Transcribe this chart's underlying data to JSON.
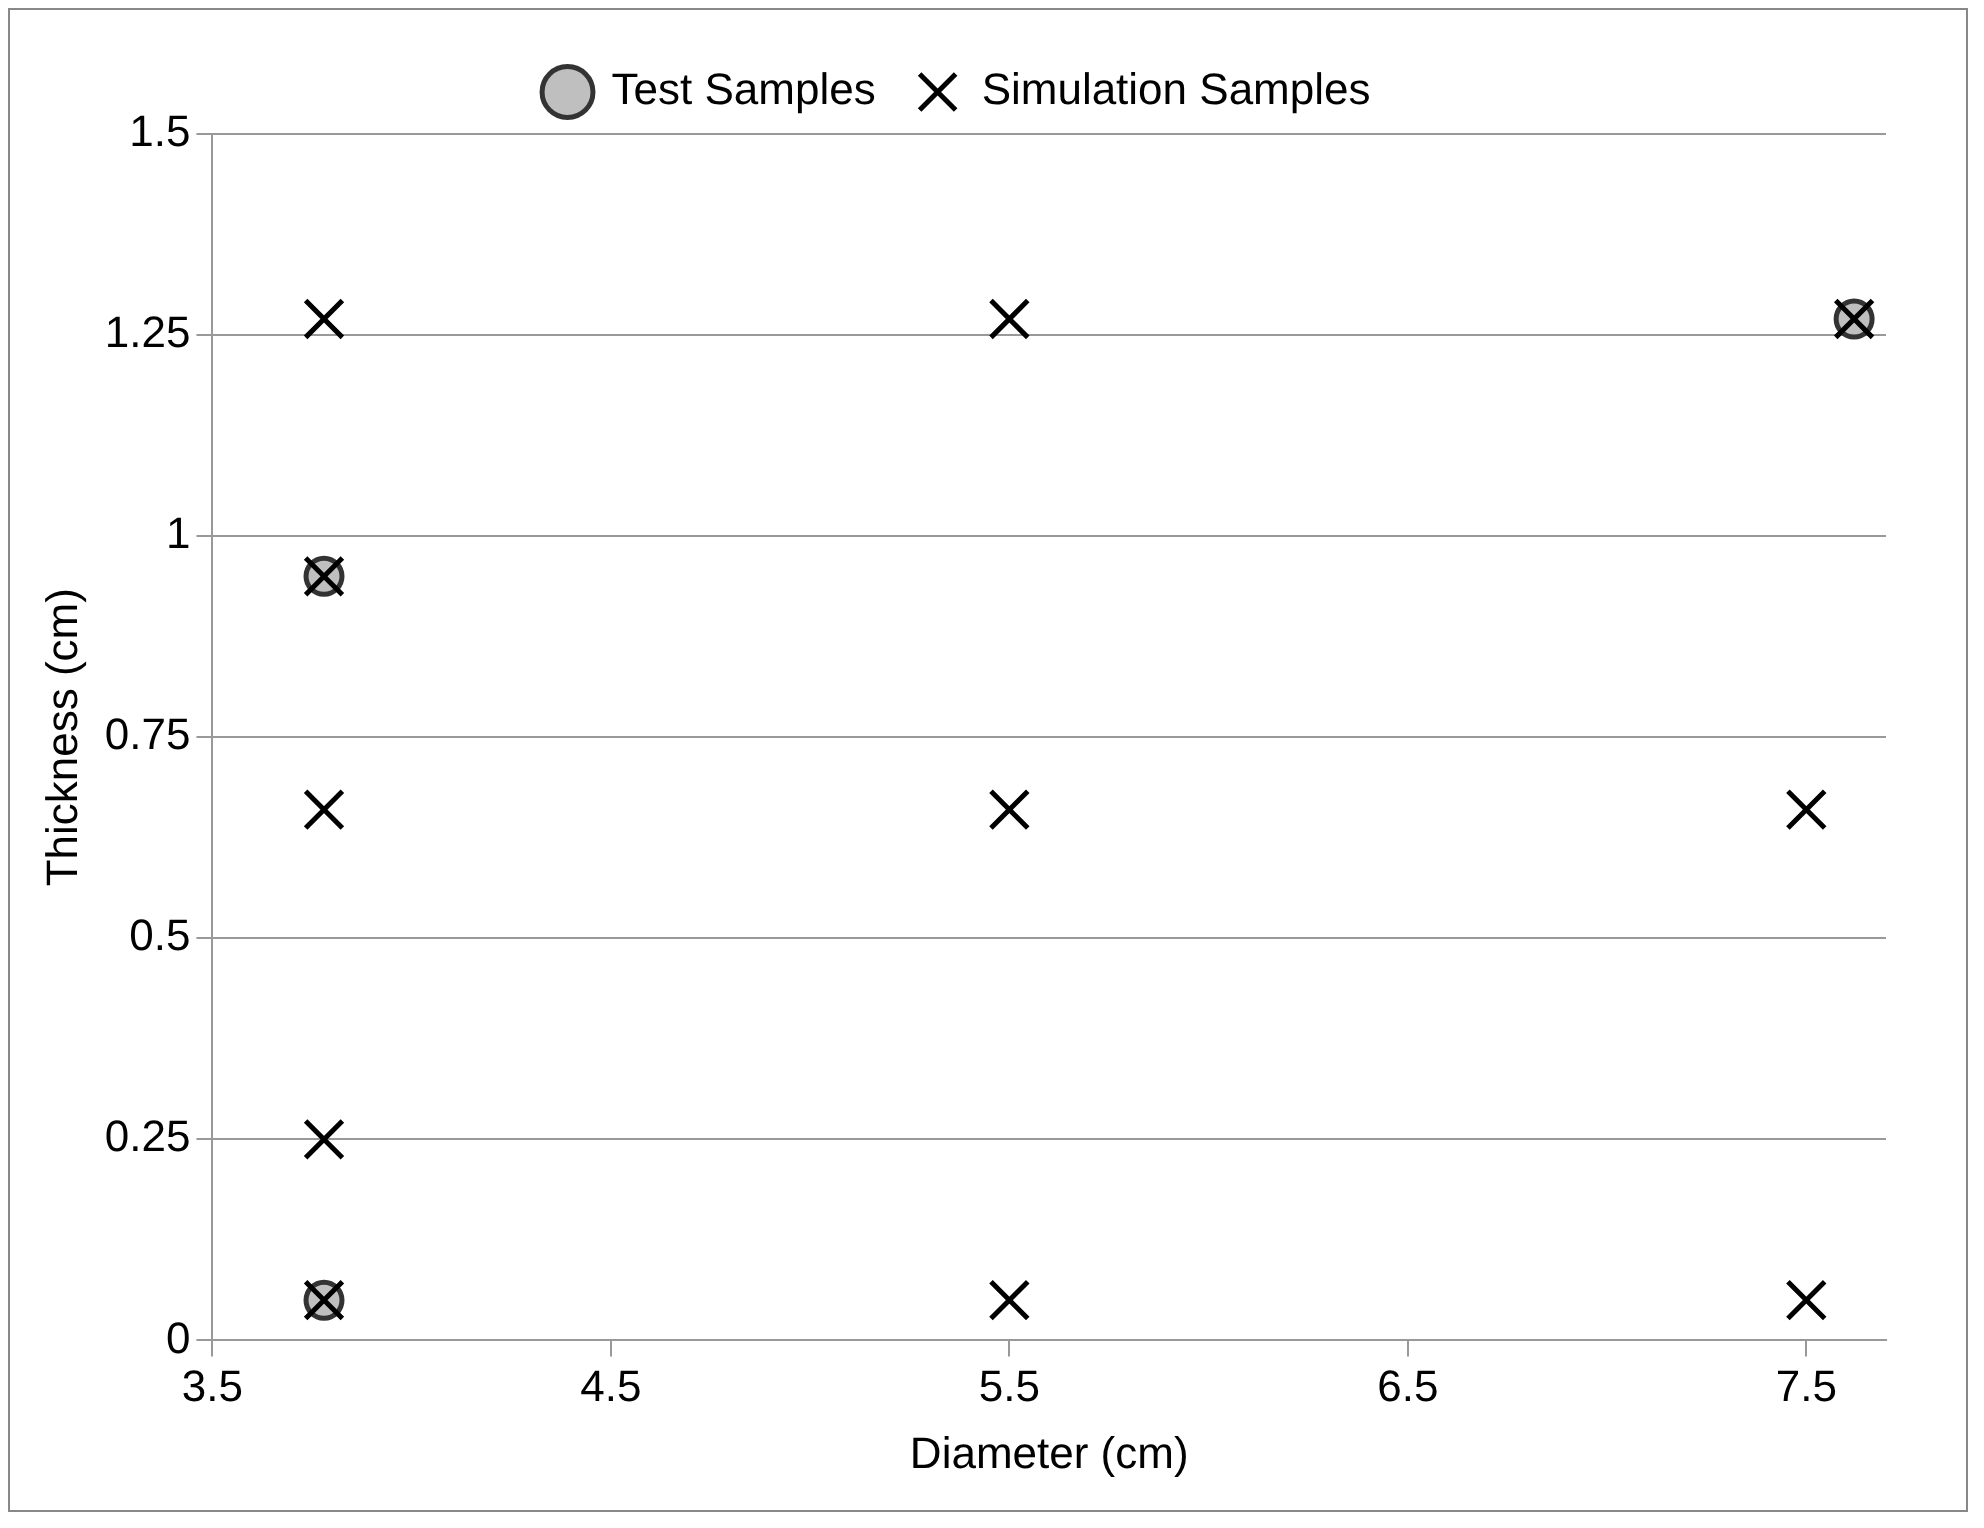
{
  "chart_data": {
    "type": "scatter",
    "xlabel": "Diameter (cm)",
    "ylabel": "Thickness (cm)",
    "xlim": [
      3.5,
      7.7
    ],
    "xticks": [
      3.5,
      4.5,
      5.5,
      6.5,
      7.5
    ],
    "ylim": [
      0,
      1.5
    ],
    "yticks": [
      0,
      0.25,
      0.5,
      0.75,
      1,
      1.25,
      1.5
    ],
    "grid": "y",
    "legend": "top",
    "series": [
      {
        "name": "Test Samples",
        "color": "#bfbfbf",
        "marker": "circle",
        "x": [
          3.78,
          3.78,
          7.62
        ],
        "values": [
          0.05,
          0.95,
          1.27
        ]
      },
      {
        "name": "Simulation Samples",
        "color": "#000000",
        "marker": "cross",
        "x": [
          3.78,
          5.5,
          7.62,
          3.78,
          3.78,
          5.5,
          7.5,
          3.78,
          3.78,
          5.5,
          7.5
        ],
        "values": [
          1.27,
          1.27,
          1.27,
          0.95,
          0.66,
          0.66,
          0.66,
          0.25,
          0.05,
          0.05,
          0.05
        ]
      }
    ]
  }
}
